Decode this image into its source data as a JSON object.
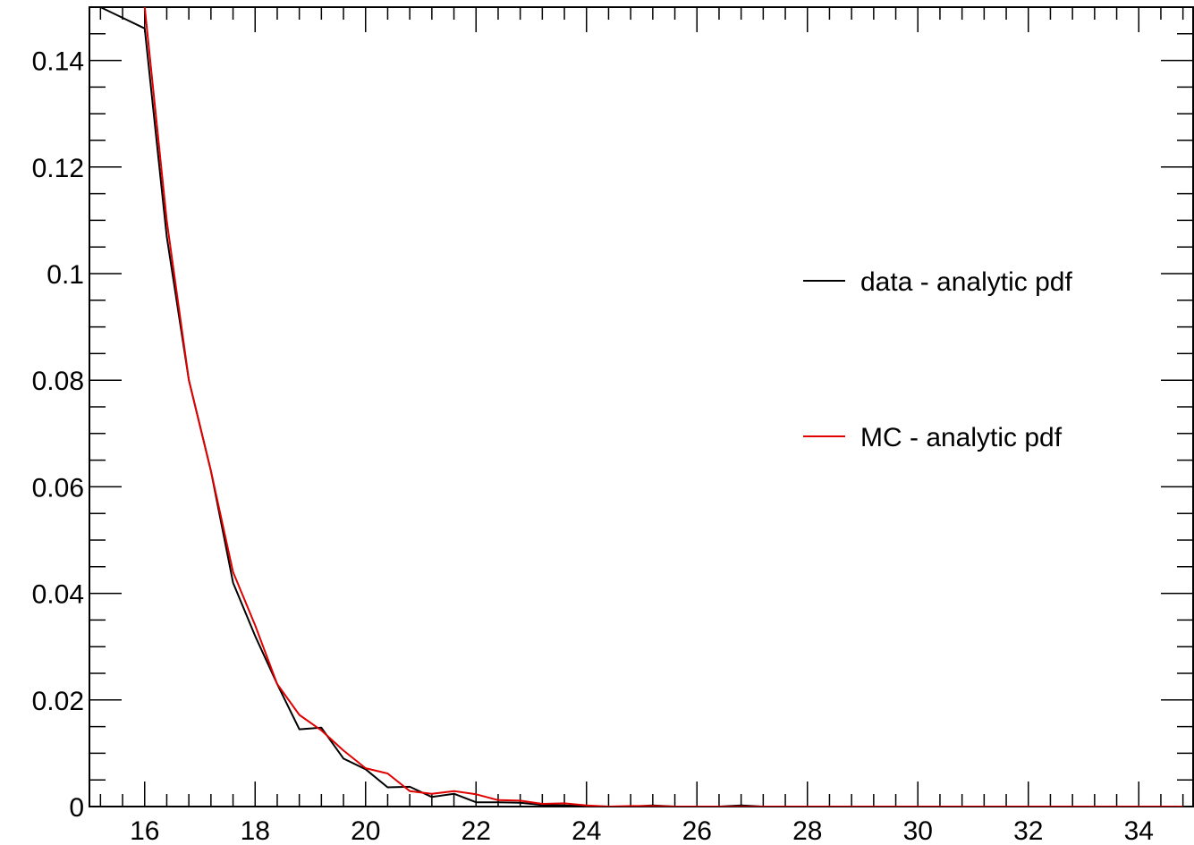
{
  "chart_data": {
    "type": "line",
    "title": "",
    "xlabel": "",
    "ylabel": "",
    "xlim": [
      15,
      35
    ],
    "ylim": [
      0,
      0.15
    ],
    "grid": false,
    "legend_position": "right",
    "x_ticks": [
      "16",
      "18",
      "20",
      "22",
      "24",
      "26",
      "28",
      "30",
      "32",
      "34"
    ],
    "y_ticks": [
      "0",
      "0.02",
      "0.04",
      "0.06",
      "0.08",
      "0.1",
      "0.12",
      "0.14"
    ],
    "series": [
      {
        "name": "data - analytic pdf",
        "color": "#000000",
        "x": [
          15.2,
          16.0,
          16.4,
          16.8,
          17.2,
          17.6,
          18.0,
          18.4,
          18.8,
          19.2,
          19.6,
          20.0,
          20.4,
          20.8,
          21.2,
          21.6,
          22.0,
          22.4,
          22.8,
          23.2,
          23.6,
          24.0,
          24.4,
          24.8,
          25.2,
          25.6,
          26.0,
          26.4,
          26.8,
          27.2,
          28.0,
          30.0,
          32.0,
          34.0,
          34.8
        ],
        "y": [
          0.15,
          0.146,
          0.107,
          0.08,
          0.063,
          0.042,
          0.032,
          0.023,
          0.0145,
          0.0148,
          0.009,
          0.007,
          0.0036,
          0.0037,
          0.0018,
          0.0024,
          0.0008,
          0.0008,
          0.0007,
          0.0003,
          0.0002,
          0.0001,
          0.0,
          0.0,
          0.0002,
          0.0,
          0.0,
          0.0,
          0.0002,
          0.0,
          0.0,
          0.0,
          0.0,
          0.0,
          0.0
        ]
      },
      {
        "name": "MC - analytic pdf",
        "color": "#e00000",
        "x": [
          16.0,
          16.4,
          16.8,
          17.2,
          17.6,
          18.0,
          18.4,
          18.8,
          19.2,
          19.6,
          20.0,
          20.4,
          20.8,
          21.2,
          21.6,
          22.0,
          22.4,
          22.8,
          23.2,
          23.6,
          24.0,
          24.4,
          24.8,
          25.2,
          25.6,
          26.0,
          27.0,
          28.0,
          30.0,
          32.0,
          34.0,
          34.8
        ],
        "y": [
          0.15,
          0.11,
          0.08,
          0.063,
          0.044,
          0.034,
          0.023,
          0.0172,
          0.0143,
          0.0105,
          0.0072,
          0.0062,
          0.0029,
          0.0024,
          0.0029,
          0.0023,
          0.0012,
          0.0011,
          0.0005,
          0.0006,
          0.0002,
          0.0,
          0.0001,
          0.0001,
          0.0,
          0.0,
          0.0,
          0.0,
          0.0,
          0.0,
          0.0,
          0.0
        ]
      }
    ]
  }
}
